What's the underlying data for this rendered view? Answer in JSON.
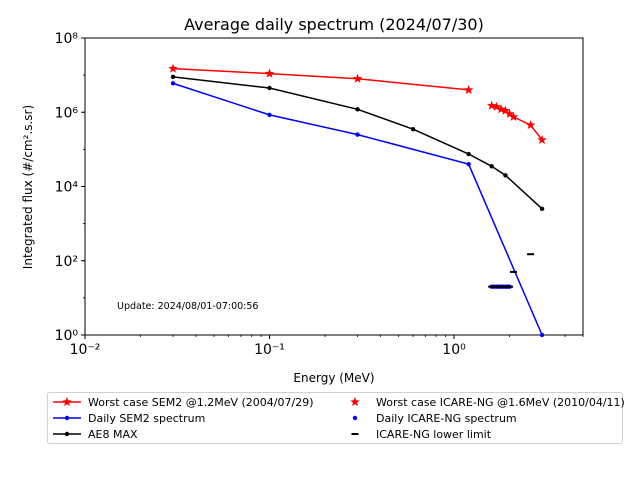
{
  "chart_data": {
    "type": "line",
    "title": "Average daily spectrum (2024/07/30)",
    "xlabel": "Energy (MeV)",
    "ylabel": "Integrated flux (#/cm².s.sr)",
    "x_scale": "log",
    "y_scale": "log",
    "xlim": [
      0.01,
      5
    ],
    "ylim": [
      1,
      100000000
    ],
    "x_ticks": [
      0.01,
      0.1,
      1
    ],
    "x_tick_labels": [
      "10⁻²",
      "10⁻¹",
      "10⁰"
    ],
    "y_ticks": [
      1,
      100,
      10000,
      1000000,
      100000000
    ],
    "y_tick_labels": [
      "10⁰",
      "10²",
      "10⁴",
      "10⁶",
      "10⁸"
    ],
    "grid": false,
    "annotation": "Update: 2024/08/01-07:00:56",
    "legend_position": "below",
    "series": [
      {
        "name": "Worst case SEM2 @1.2MeV (2004/07/29)",
        "color": "#ff0000",
        "style": "line",
        "marker": "star",
        "x": [
          0.03,
          0.1,
          0.3,
          1.2
        ],
        "y": [
          15000000,
          11000000,
          8000000,
          4000000
        ]
      },
      {
        "name": "Worst case ICARE-NG @1.6MeV (2010/04/11)",
        "color": "#ff0000",
        "style": "line",
        "marker": "star",
        "x": [
          1.6,
          1.7,
          1.8,
          1.9,
          2.0,
          2.1,
          2.6,
          3.0
        ],
        "y": [
          1500000,
          1400000,
          1200000,
          1100000,
          900000,
          750000,
          450000,
          180000
        ]
      },
      {
        "name": "Daily SEM2 spectrum",
        "color": "#0000ff",
        "style": "line",
        "marker": "dot",
        "x": [
          0.03,
          0.1,
          0.3,
          1.2,
          3.0
        ],
        "y": [
          6000000,
          850000,
          250000,
          40000,
          1
        ]
      },
      {
        "name": "AE8 MAX",
        "color": "#000000",
        "style": "line",
        "marker": "dot",
        "x": [
          0.03,
          0.1,
          0.3,
          0.6,
          1.2,
          1.6,
          1.9,
          3.0
        ],
        "y": [
          9000000,
          4500000,
          1200000,
          350000,
          75000,
          35000,
          20000,
          2500
        ]
      },
      {
        "name": "Daily ICARE-NG spectrum",
        "color": "#0000ff",
        "style": "points",
        "marker": "dot",
        "x": [
          1.6,
          1.65,
          1.7,
          1.75,
          1.8,
          1.85,
          1.9,
          1.95,
          2.0
        ],
        "y": [
          20,
          20,
          20,
          20,
          20,
          20,
          20,
          20,
          20
        ]
      },
      {
        "name": "ICARE-NG lower limit",
        "color": "#000000",
        "style": "points",
        "marker": "hline",
        "x": [
          1.6,
          1.65,
          1.7,
          1.75,
          1.8,
          1.85,
          1.9,
          1.95,
          2.0,
          2.1,
          2.6
        ],
        "y": [
          20,
          20,
          20,
          20,
          20,
          20,
          20,
          20,
          20,
          50,
          150
        ]
      }
    ]
  },
  "legend": {
    "items": [
      {
        "label": "Worst case SEM2 @1.2MeV (2004/07/29)",
        "color": "#ff0000",
        "line": true,
        "marker": "star"
      },
      {
        "label": "Worst case ICARE-NG @1.6MeV (2010/04/11)",
        "color": "#ff0000",
        "line": false,
        "marker": "star"
      },
      {
        "label": "Daily SEM2 spectrum",
        "color": "#0000ff",
        "line": true,
        "marker": "dot"
      },
      {
        "label": "Daily ICARE-NG spectrum",
        "color": "#0000ff",
        "line": false,
        "marker": "dot"
      },
      {
        "label": "AE8 MAX",
        "color": "#000000",
        "line": true,
        "marker": "dot"
      },
      {
        "label": "ICARE-NG lower limit",
        "color": "#000000",
        "line": false,
        "marker": "hline"
      }
    ]
  }
}
